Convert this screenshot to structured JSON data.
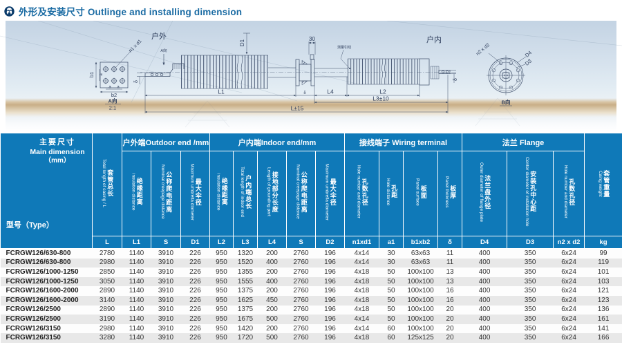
{
  "header": {
    "title": "外形及安装尺寸 Outlinge and installing dimension"
  },
  "drawing": {
    "outdoor_label": "户外",
    "indoor_label": "户内",
    "lead_label": "测量引线",
    "dims": {
      "d1": "D1",
      "w30": "30",
      "l1": "L1",
      "l4": "L4",
      "l2": "L2",
      "l3": "L3±10",
      "l": "L±15",
      "delta_left": "δ",
      "delta_mid": "δ",
      "delta_right": "δ"
    },
    "plate": {
      "b1": "b1",
      "b2": "b2",
      "a": "a",
      "holes": "n1 x d1",
      "view": "A向",
      "scale": "2:1"
    },
    "flange_view": {
      "holes": "n2 x d2",
      "d4": "D4",
      "d3": "D3",
      "view": "B向"
    }
  },
  "table": {
    "corner": {
      "line1": "主要尺寸",
      "line2": "Main dimension",
      "line3": "（mm）",
      "bottom": "型号（Type）"
    },
    "groups": {
      "outdoor": "户外端Outdoor end /mm",
      "indoor": "户内端Indoor end/mm",
      "wiring": "接线端子 Wiring terminal",
      "flange": "法兰 Flange"
    },
    "total_col": {
      "zh": "套管总长",
      "en": "Total length of casing / L",
      "unit": "L"
    },
    "weight_col": {
      "zh": "套管重量",
      "en": "Caing weight",
      "unit": "kg"
    },
    "columns": [
      {
        "zh": "绝缘距离",
        "en": "insulation distance",
        "unit": "L1"
      },
      {
        "zh": "公称爬电距离",
        "en": "Nominal creepage distance",
        "unit": "S"
      },
      {
        "zh": "最大伞径",
        "en": "Maximum umbrella diameter",
        "unit": "D1"
      },
      {
        "zh": "绝缘距离",
        "en": "insulation distance",
        "unit": "L2"
      },
      {
        "zh": "户内端总长",
        "en": "Total length of indoor end",
        "unit": "L3"
      },
      {
        "zh": "接地部分长度",
        "en": "Length of grounding part",
        "unit": "L4"
      },
      {
        "zh": "公称爬电距离",
        "en": "Nominal creepage distance",
        "unit": "S"
      },
      {
        "zh": "最大伞径",
        "en": "Maximum umbrella diameter",
        "unit": "D2"
      },
      {
        "zh": "孔数孔径",
        "en": "Hole number and diameter",
        "unit": "n1xd1"
      },
      {
        "zh": "孔距",
        "en": "Hole distance",
        "unit": "a1"
      },
      {
        "zh": "板面",
        "en": "Panel surface",
        "unit": "b1xb2"
      },
      {
        "zh": "板厚",
        "en": "Panel thickness",
        "unit": "δ"
      },
      {
        "zh": "法兰盘外径",
        "en": "Outer diameter of flange plate",
        "unit": "D4"
      },
      {
        "zh": "安装孔中心距",
        "en": "Center diameter of installation hole",
        "unit": "D3"
      },
      {
        "zh": "孔数孔径",
        "en": "Hole number and diameter",
        "unit": "n2 x d2"
      }
    ],
    "rows": [
      [
        "FCRGW126/630-800",
        "2780",
        "1140",
        "3910",
        "226",
        "950",
        "1320",
        "200",
        "2760",
        "196",
        "4x14",
        "30",
        "63x63",
        "11",
        "400",
        "350",
        "6x24",
        "99"
      ],
      [
        "FCRGW126/630-800",
        "2980",
        "1140",
        "3910",
        "226",
        "950",
        "1520",
        "400",
        "2760",
        "196",
        "4x14",
        "30",
        "63x63",
        "11",
        "400",
        "350",
        "6x24",
        "119"
      ],
      [
        "FCRGW126/1000-1250",
        "2850",
        "1140",
        "3910",
        "226",
        "950",
        "1355",
        "200",
        "2760",
        "196",
        "4x18",
        "50",
        "100x100",
        "13",
        "400",
        "350",
        "6x24",
        "101"
      ],
      [
        "FCRGW126/1000-1250",
        "3050",
        "1140",
        "3910",
        "226",
        "950",
        "1555",
        "400",
        "2760",
        "196",
        "4x18",
        "50",
        "100x100",
        "13",
        "400",
        "350",
        "6x24",
        "103"
      ],
      [
        "FCRGW126/1600-2000",
        "2890",
        "1140",
        "3910",
        "226",
        "950",
        "1375",
        "200",
        "2760",
        "196",
        "4x18",
        "50",
        "100x100",
        "16",
        "400",
        "350",
        "6x24",
        "121"
      ],
      [
        "FCRGW126/1600-2000",
        "3140",
        "1140",
        "3910",
        "226",
        "950",
        "1625",
        "450",
        "2760",
        "196",
        "4x18",
        "50",
        "100x100",
        "16",
        "400",
        "350",
        "6x24",
        "123"
      ],
      [
        "FCRGW126/2500",
        "2890",
        "1140",
        "3910",
        "226",
        "950",
        "1375",
        "200",
        "2760",
        "196",
        "4x18",
        "50",
        "100x100",
        "20",
        "400",
        "350",
        "6x24",
        "136"
      ],
      [
        "FCRGW126/2500",
        "3190",
        "1140",
        "3910",
        "226",
        "950",
        "1675",
        "500",
        "2760",
        "196",
        "4x14",
        "50",
        "100x100",
        "20",
        "400",
        "350",
        "6x24",
        "161"
      ],
      [
        "FCRGW126/3150",
        "2980",
        "1140",
        "3910",
        "226",
        "950",
        "1420",
        "200",
        "2760",
        "196",
        "4x14",
        "60",
        "100x100",
        "20",
        "400",
        "350",
        "6x24",
        "141"
      ],
      [
        "FCRGW126/3150",
        "3280",
        "1140",
        "3910",
        "226",
        "950",
        "1720",
        "500",
        "2760",
        "196",
        "4x18",
        "60",
        "125x125",
        "20",
        "400",
        "350",
        "6x24",
        "166"
      ]
    ]
  }
}
